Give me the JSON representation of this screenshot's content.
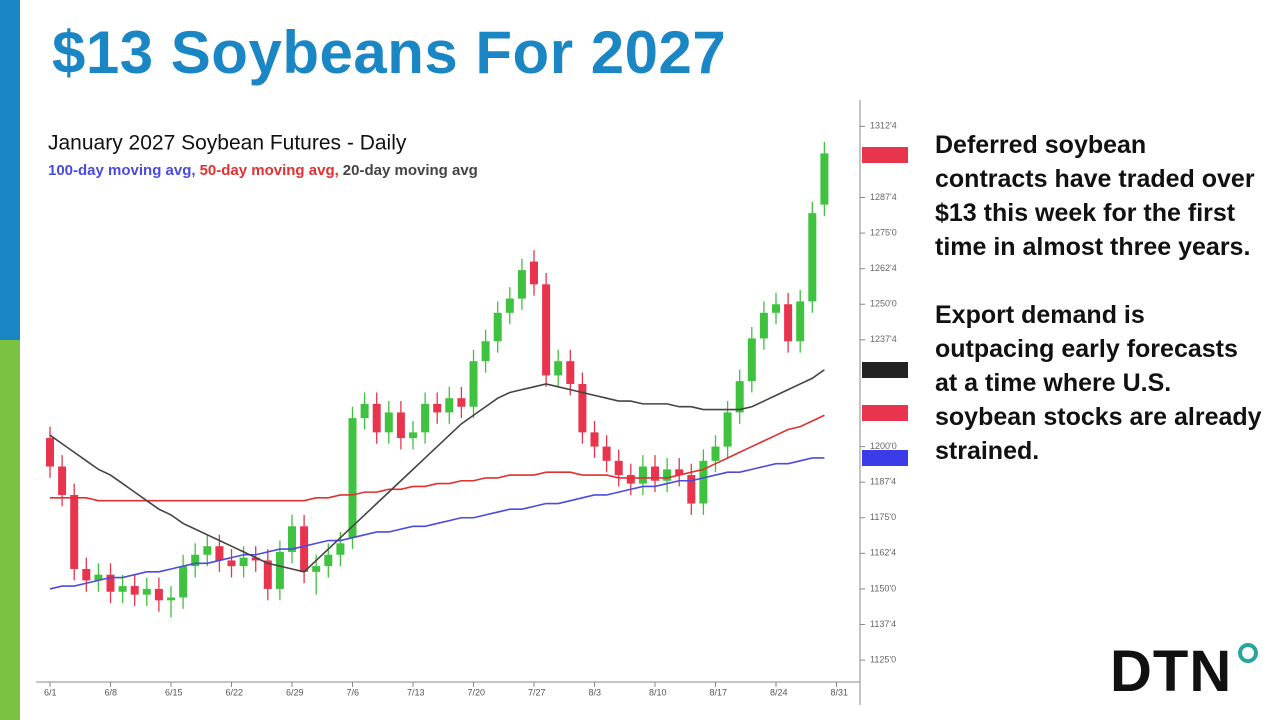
{
  "slide": {
    "title": "$13 Soybeans For 2027",
    "paragraphs": [
      "Deferred soybean contracts have traded over $13 this week for the first time in almost three years.",
      "Export demand is outpacing early forecasts at a time where U.S. soybean stocks are already strained."
    ],
    "logo": "DTN"
  },
  "chart_data": {
    "type": "candlestick",
    "title": "January 2027 Soybean Futures - Daily",
    "categories": [
      "6/1",
      null,
      null,
      null,
      null,
      "6/8",
      null,
      null,
      null,
      null,
      "6/15",
      null,
      null,
      null,
      null,
      "6/22",
      null,
      null,
      null,
      null,
      "6/29",
      null,
      null,
      null,
      null,
      "7/6",
      null,
      null,
      null,
      null,
      "7/13",
      null,
      null,
      null,
      null,
      "7/20",
      null,
      null,
      null,
      null,
      "7/27",
      null,
      null,
      null,
      null,
      "8/3",
      null,
      null,
      null,
      null,
      "8/10",
      null,
      null,
      null,
      null,
      "8/17",
      null,
      null,
      null,
      null,
      "8/24",
      null,
      null,
      null,
      null,
      "8/31"
    ],
    "open": [
      1203,
      1193,
      1183,
      1157,
      1153,
      1155,
      1149,
      1151,
      1148,
      1150,
      1146,
      1147,
      1158,
      1162,
      1165,
      1160,
      1158,
      1161,
      1160,
      1150,
      1163,
      1172,
      1156,
      1158,
      1162,
      1168,
      1210,
      1215,
      1205,
      1212,
      1203,
      1205,
      1215,
      1212,
      1217,
      1214,
      1230,
      1237,
      1247,
      1252,
      1265,
      1257,
      1225,
      1230,
      1222,
      1205,
      1200,
      1195,
      1190,
      1187,
      1193,
      1188,
      1192,
      1190,
      1180,
      1195,
      1200,
      1212,
      1223,
      1238,
      1247,
      1250,
      1237,
      1251,
      1285,
      null
    ],
    "high": [
      1207,
      1197,
      1187,
      1161,
      1159,
      1159,
      1155,
      1155,
      1154,
      1154,
      1151,
      1162,
      1166,
      1169,
      1169,
      1164,
      1165,
      1165,
      1164,
      1167,
      1176,
      1176,
      1162,
      1166,
      1170,
      1214,
      1219,
      1219,
      1216,
      1216,
      1209,
      1219,
      1219,
      1221,
      1221,
      1234,
      1241,
      1251,
      1256,
      1266,
      1269,
      1261,
      1234,
      1234,
      1226,
      1209,
      1204,
      1199,
      1194,
      1197,
      1197,
      1196,
      1196,
      1194,
      1199,
      1204,
      1216,
      1227,
      1242,
      1251,
      1254,
      1254,
      1255,
      1286,
      1307,
      null
    ],
    "low": [
      1189,
      1179,
      1153,
      1149,
      1149,
      1145,
      1145,
      1144,
      1144,
      1142,
      1140,
      1143,
      1154,
      1158,
      1156,
      1154,
      1154,
      1156,
      1146,
      1146,
      1159,
      1152,
      1148,
      1154,
      1158,
      1164,
      1206,
      1201,
      1201,
      1199,
      1199,
      1201,
      1208,
      1208,
      1210,
      1210,
      1226,
      1233,
      1243,
      1248,
      1253,
      1221,
      1221,
      1218,
      1201,
      1196,
      1191,
      1186,
      1183,
      1183,
      1184,
      1184,
      1186,
      1176,
      1176,
      1191,
      1196,
      1208,
      1219,
      1234,
      1243,
      1233,
      1233,
      1247,
      1281,
      null
    ],
    "close": [
      1193,
      1183,
      1157,
      1153,
      1155,
      1149,
      1151,
      1148,
      1150,
      1146,
      1147,
      1158,
      1162,
      1165,
      1160,
      1158,
      1161,
      1160,
      1150,
      1163,
      1172,
      1156,
      1158,
      1162,
      1166,
      1210,
      1215,
      1205,
      1212,
      1203,
      1205,
      1215,
      1212,
      1217,
      1214,
      1230,
      1237,
      1247,
      1252,
      1262,
      1257,
      1225,
      1230,
      1222,
      1205,
      1200,
      1195,
      1190,
      1187,
      1193,
      1188,
      1192,
      1190,
      1180,
      1195,
      1200,
      1212,
      1223,
      1238,
      1247,
      1250,
      1237,
      1251,
      1282,
      1303,
      null
    ],
    "up_color": "#3fc23f",
    "down_color": "#e8344c",
    "series": [
      {
        "name": "100-day moving avg,",
        "color": "#4a4adf",
        "values": [
          1150,
          1151,
          1151,
          1152,
          1153,
          1154,
          1154,
          1155,
          1156,
          1156,
          1157,
          1158,
          1159,
          1159,
          1160,
          1161,
          1162,
          1162,
          1163,
          1164,
          1164,
          1165,
          1166,
          1167,
          1167,
          1168,
          1169,
          1170,
          1170,
          1171,
          1172,
          1172,
          1173,
          1174,
          1175,
          1175,
          1176,
          1177,
          1178,
          1178,
          1179,
          1180,
          1180,
          1181,
          1182,
          1183,
          1183,
          1184,
          1185,
          1186,
          1186,
          1187,
          1188,
          1188,
          1189,
          1190,
          1191,
          1191,
          1192,
          1193,
          1194,
          1194,
          1195,
          1196,
          1196,
          null
        ]
      },
      {
        "name": "50-day moving avg,",
        "color": "#e03030",
        "values": [
          1182,
          1182,
          1182,
          1182,
          1181,
          1181,
          1181,
          1181,
          1181,
          1181,
          1181,
          1181,
          1181,
          1181,
          1181,
          1181,
          1181,
          1181,
          1181,
          1181,
          1181,
          1181,
          1182,
          1182,
          1183,
          1183,
          1184,
          1184,
          1185,
          1185,
          1186,
          1186,
          1187,
          1187,
          1188,
          1188,
          1189,
          1189,
          1190,
          1190,
          1190,
          1191,
          1191,
          1191,
          1190,
          1190,
          1190,
          1189,
          1189,
          1189,
          1189,
          1189,
          1190,
          1191,
          1192,
          1194,
          1196,
          1198,
          1200,
          1202,
          1204,
          1206,
          1207,
          1209,
          1211,
          null
        ]
      },
      {
        "name": "20-day moving avg",
        "color": "#444444",
        "values": [
          1204,
          1201,
          1198,
          1195,
          1192,
          1190,
          1187,
          1184,
          1181,
          1178,
          1176,
          1173,
          1171,
          1169,
          1167,
          1165,
          1163,
          1161,
          1159,
          1158,
          1157,
          1156,
          1160,
          1164,
          1168,
          1172,
          1176,
          1180,
          1184,
          1188,
          1192,
          1196,
          1200,
          1204,
          1208,
          1211,
          1214,
          1217,
          1219,
          1220,
          1221,
          1222,
          1221,
          1220,
          1219,
          1218,
          1217,
          1216,
          1216,
          1215,
          1215,
          1215,
          1214,
          1214,
          1213,
          1213,
          1213,
          1213,
          1214,
          1216,
          1218,
          1220,
          1222,
          1224,
          1227,
          null
        ]
      }
    ],
    "ylim": [
      1118,
      1320
    ],
    "yticks": [
      {
        "value": 1312.5,
        "label": "1312'4"
      },
      {
        "value": 1287.5,
        "label": "1287'4"
      },
      {
        "value": 1275,
        "label": "1275'0"
      },
      {
        "value": 1262.5,
        "label": "1262'4"
      },
      {
        "value": 1250,
        "label": "1250'0"
      },
      {
        "value": 1237.5,
        "label": "1237'4"
      },
      {
        "value": 1200,
        "label": "1200'0"
      },
      {
        "value": 1187.5,
        "label": "1187'4"
      },
      {
        "value": 1175,
        "label": "1175'0"
      },
      {
        "value": 1162.5,
        "label": "1162'4"
      },
      {
        "value": 1150,
        "label": "1150'0"
      },
      {
        "value": 1137.5,
        "label": "1137'4"
      },
      {
        "value": 1125,
        "label": "1125'0"
      }
    ]
  }
}
